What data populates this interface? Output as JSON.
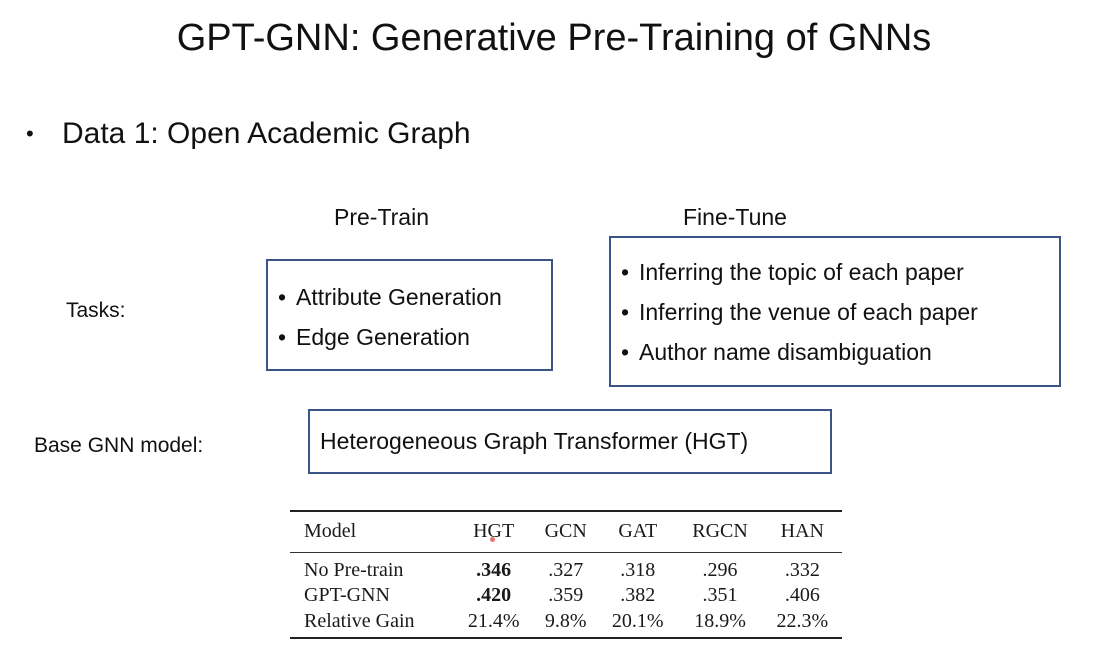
{
  "slide": {
    "title": "GPT-GNN: Generative Pre-Training of GNNs"
  },
  "bullet": {
    "symbol": "•",
    "text": "Data 1: Open Academic Graph"
  },
  "pretrain": {
    "heading": "Pre-Train",
    "items": [
      "Attribute Generation",
      "Edge Generation"
    ]
  },
  "finetune": {
    "heading": "Fine-Tune",
    "items": [
      "Inferring the topic of each paper",
      "Inferring the venue of each paper",
      "Author name disambiguation"
    ]
  },
  "tasks_label": "Tasks:",
  "base_model": {
    "label": "Base GNN model:",
    "value": "Heterogeneous Graph Transformer (HGT)"
  },
  "list_bullet": "•",
  "colors": {
    "box_border": "#3b5488",
    "text": "#111111"
  },
  "results_table": {
    "headers": [
      "Model",
      "HGT",
      "GCN",
      "GAT",
      "RGCN",
      "HAN"
    ],
    "rows": [
      {
        "label": "No Pre-train",
        "values": [
          ".346",
          ".327",
          ".318",
          ".296",
          ".332"
        ]
      },
      {
        "label": "GPT-GNN",
        "values": [
          ".420",
          ".359",
          ".382",
          ".351",
          ".406"
        ]
      },
      {
        "label": "Relative Gain",
        "values": [
          "21.4%",
          "9.8%",
          "20.1%",
          "18.9%",
          "22.3%"
        ]
      }
    ],
    "bold_cells": [
      [
        0,
        0
      ],
      [
        1,
        0
      ]
    ]
  }
}
